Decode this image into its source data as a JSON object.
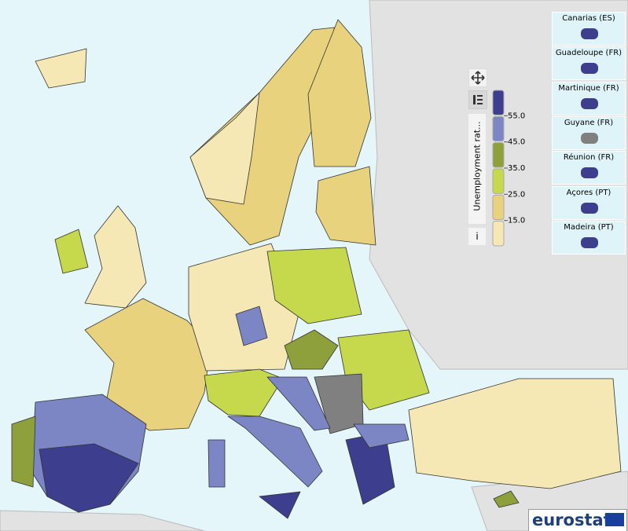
{
  "legend": {
    "title": "Unemployment rat...",
    "colors": [
      "#3d3f8e",
      "#7d86c4",
      "#8ea03c",
      "#c6d94c",
      "#e8d27e",
      "#f6e8b4"
    ],
    "breaks": [
      {
        "value": 55,
        "label": "55.0"
      },
      {
        "value": 45,
        "label": "45.0"
      },
      {
        "value": 35,
        "label": "35.0"
      },
      {
        "value": 25,
        "label": "25.0"
      },
      {
        "value": 15,
        "label": "15.0"
      }
    ]
  },
  "controls": {
    "info": "i"
  },
  "insets": [
    "Canarias (ES)",
    "Guadeloupe (FR)",
    "Martinique (FR)",
    "Guyane (FR)",
    "Réunion (FR)",
    "Açores (PT)",
    "Madeira (PT)"
  ],
  "logo": "eurostat"
}
